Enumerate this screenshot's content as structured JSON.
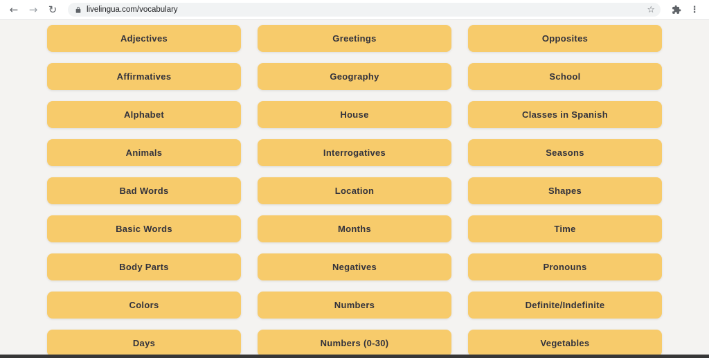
{
  "browser": {
    "back_icon": "←",
    "forward_icon": "→",
    "reload_icon": "↻",
    "url": "livelingua.com/vocabulary",
    "bookmark_icon": "☆",
    "menu_icon": "⋮"
  },
  "colors": {
    "button_bg": "#F7CB6B",
    "button_text": "#32323C",
    "page_bg": "#F4F3F1",
    "toolbar_bg": "#FFFFFF",
    "address_pill_bg": "#F1F3F4",
    "icon_gray": "#5F6368",
    "bottom_bar": "#373737"
  },
  "categories": {
    "rows": [
      [
        "Adjectives",
        "Greetings",
        "Opposites"
      ],
      [
        "Affirmatives",
        "Geography",
        "School"
      ],
      [
        "Alphabet",
        "House",
        "Classes in Spanish"
      ],
      [
        "Animals",
        "Interrogatives",
        "Seasons"
      ],
      [
        "Bad Words",
        "Location",
        "Shapes"
      ],
      [
        "Basic Words",
        "Months",
        "Time"
      ],
      [
        "Body Parts",
        "Negatives",
        "Pronouns"
      ],
      [
        "Colors",
        "Numbers",
        "Definite/Indefinite"
      ],
      [
        "Days",
        "Numbers (0-30)",
        "Vegetables"
      ]
    ]
  }
}
